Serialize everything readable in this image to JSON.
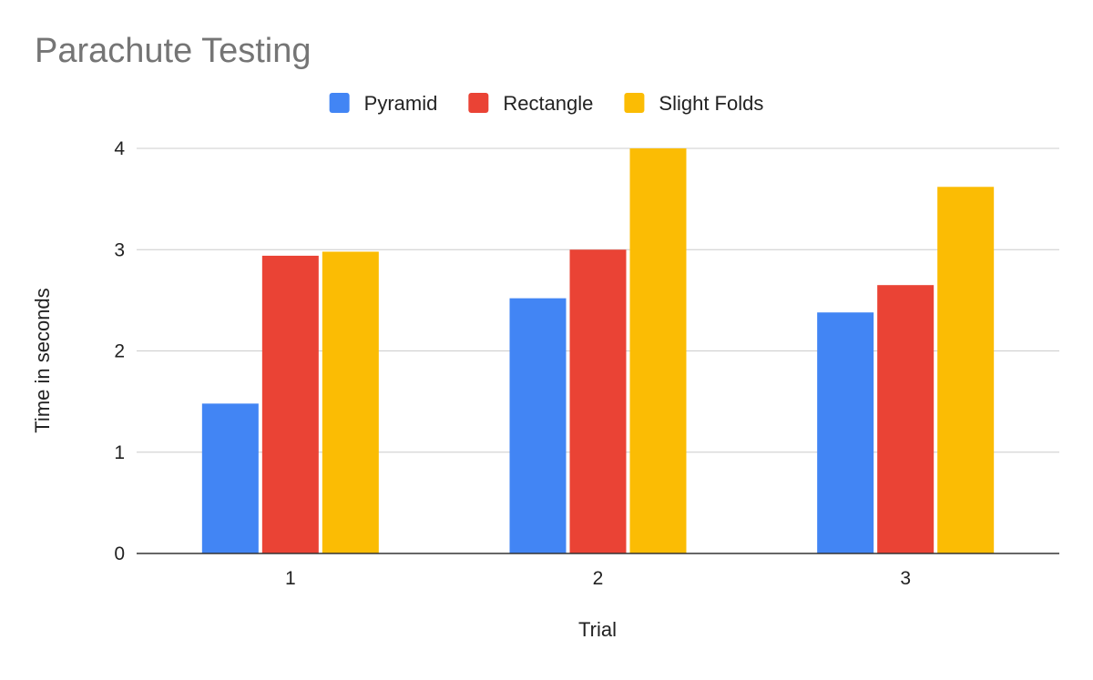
{
  "chart_data": {
    "type": "bar",
    "title": "Parachute Testing",
    "xlabel": "Trial",
    "ylabel": "Time in seconds",
    "categories": [
      "1",
      "2",
      "3"
    ],
    "series": [
      {
        "name": "Pyramid",
        "color": "#4285F4",
        "values": [
          1.48,
          2.52,
          2.38
        ]
      },
      {
        "name": "Rectangle",
        "color": "#EA4335",
        "values": [
          2.94,
          3.0,
          2.65
        ]
      },
      {
        "name": "Slight Folds",
        "color": "#FBBC04",
        "values": [
          2.98,
          4.0,
          3.62
        ]
      }
    ],
    "ylim": [
      0,
      4
    ],
    "yticks": [
      "0",
      "1",
      "2",
      "3",
      "4"
    ],
    "grid": true,
    "legend_position": "top"
  }
}
